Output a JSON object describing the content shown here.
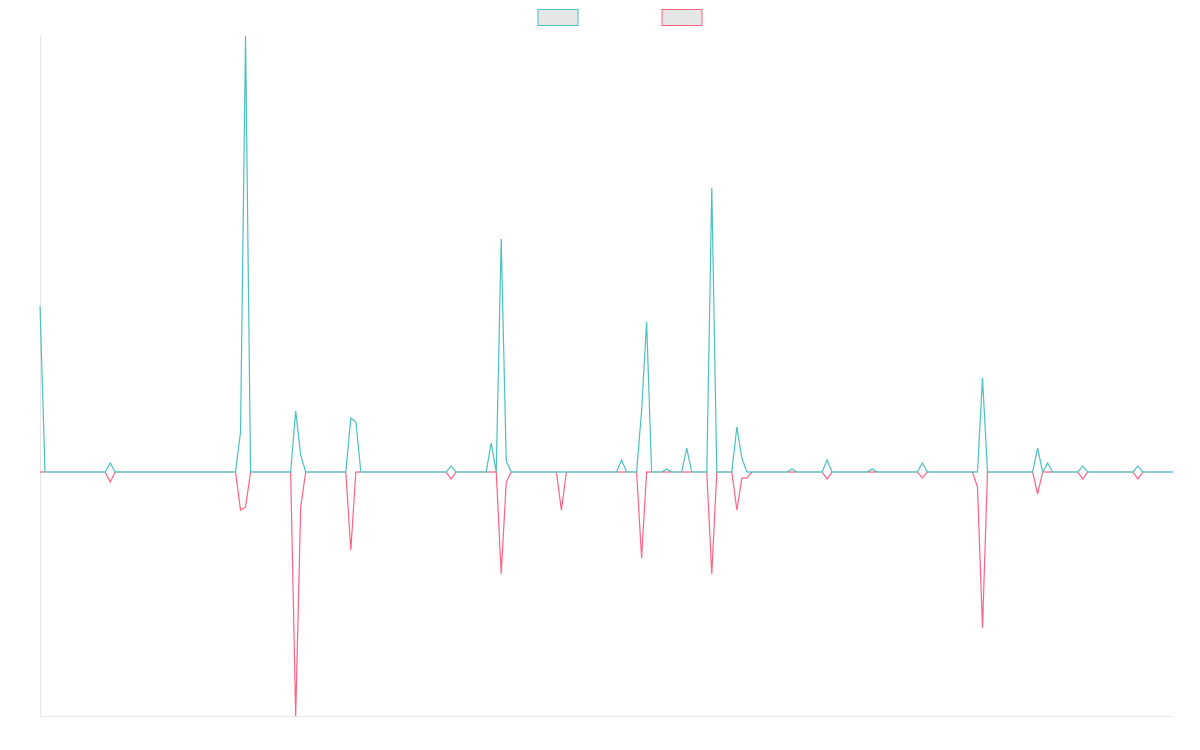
{
  "chart_data": {
    "type": "line",
    "ylim": [
      -244,
      436
    ],
    "legend": "top",
    "series": [
      {
        "color": "#4bc0c0",
        "values": [
          166,
          0,
          0,
          0,
          0,
          0,
          0,
          0,
          0,
          0,
          0,
          0,
          0,
          0,
          9,
          0,
          0,
          0,
          0,
          0,
          0,
          0,
          0,
          0,
          0,
          0,
          0,
          0,
          0,
          0,
          0,
          0,
          0,
          0,
          0,
          0,
          0,
          0,
          0,
          0,
          40,
          436,
          0,
          0,
          0,
          0,
          0,
          0,
          0,
          0,
          0,
          61,
          17,
          0,
          0,
          0,
          0,
          0,
          0,
          0,
          0,
          0,
          54,
          50,
          0,
          0,
          0,
          0,
          0,
          0,
          0,
          0,
          0,
          0,
          0,
          0,
          0,
          0,
          0,
          0,
          0,
          0,
          6,
          0,
          0,
          0,
          0,
          0,
          0,
          0,
          29,
          0,
          233,
          11,
          0,
          0,
          0,
          0,
          0,
          0,
          0,
          0,
          0,
          0,
          0,
          0,
          0,
          0,
          0,
          0,
          0,
          0,
          0,
          0,
          0,
          0,
          12,
          0,
          0,
          0,
          61,
          150,
          0,
          0,
          0,
          3,
          0,
          0,
          0,
          24,
          0,
          0,
          0,
          0,
          284,
          0,
          0,
          0,
          0,
          45,
          14,
          0,
          0,
          0,
          0,
          0,
          0,
          0,
          0,
          0,
          3,
          0,
          0,
          0,
          0,
          0,
          0,
          12,
          0,
          0,
          0,
          0,
          0,
          0,
          0,
          0,
          3,
          0,
          0,
          0,
          0,
          0,
          0,
          0,
          0,
          0,
          9,
          0,
          0,
          0,
          0,
          0,
          0,
          0,
          0,
          0,
          0,
          0,
          94,
          0,
          0,
          0,
          0,
          0,
          0,
          0,
          0,
          0,
          0,
          24,
          0,
          9,
          0,
          0,
          0,
          0,
          0,
          0,
          6,
          0,
          0,
          0,
          0,
          0,
          0,
          0,
          0,
          0,
          0,
          6,
          0,
          0,
          0,
          0,
          0,
          0,
          0
        ]
      },
      {
        "color": "#ff6384",
        "values": [
          0,
          0,
          0,
          0,
          0,
          0,
          0,
          0,
          0,
          0,
          0,
          0,
          0,
          0,
          -10,
          0,
          0,
          0,
          0,
          0,
          0,
          0,
          0,
          0,
          0,
          0,
          0,
          0,
          0,
          0,
          0,
          0,
          0,
          0,
          0,
          0,
          0,
          0,
          0,
          0,
          -38,
          -35,
          0,
          0,
          0,
          0,
          0,
          0,
          0,
          0,
          0,
          -244,
          -35,
          0,
          0,
          0,
          0,
          0,
          0,
          0,
          0,
          0,
          -78,
          0,
          0,
          0,
          0,
          0,
          0,
          0,
          0,
          0,
          0,
          0,
          0,
          0,
          0,
          0,
          0,
          0,
          0,
          0,
          -7,
          0,
          0,
          0,
          0,
          0,
          0,
          0,
          0,
          0,
          -102,
          -10,
          0,
          0,
          0,
          0,
          0,
          0,
          0,
          0,
          0,
          0,
          -38,
          0,
          0,
          0,
          0,
          0,
          0,
          0,
          0,
          0,
          0,
          0,
          0,
          0,
          0,
          0,
          -86,
          0,
          0,
          0,
          0,
          0,
          0,
          0,
          0,
          0,
          0,
          0,
          0,
          0,
          -102,
          0,
          0,
          0,
          0,
          -38,
          -6,
          -6,
          0,
          0,
          0,
          0,
          0,
          0,
          0,
          0,
          0,
          0,
          0,
          0,
          0,
          0,
          0,
          -7,
          0,
          0,
          0,
          0,
          0,
          0,
          0,
          0,
          0,
          0,
          0,
          0,
          0,
          0,
          0,
          0,
          0,
          0,
          -6,
          0,
          0,
          0,
          0,
          0,
          0,
          0,
          0,
          0,
          0,
          -15,
          -156,
          0,
          0,
          0,
          0,
          0,
          0,
          0,
          0,
          0,
          0,
          -22,
          0,
          0,
          0,
          0,
          0,
          0,
          0,
          0,
          -7,
          0,
          0,
          0,
          0,
          0,
          0,
          0,
          0,
          0,
          0,
          -7,
          0,
          0,
          0,
          0,
          0,
          0,
          0
        ]
      }
    ]
  }
}
